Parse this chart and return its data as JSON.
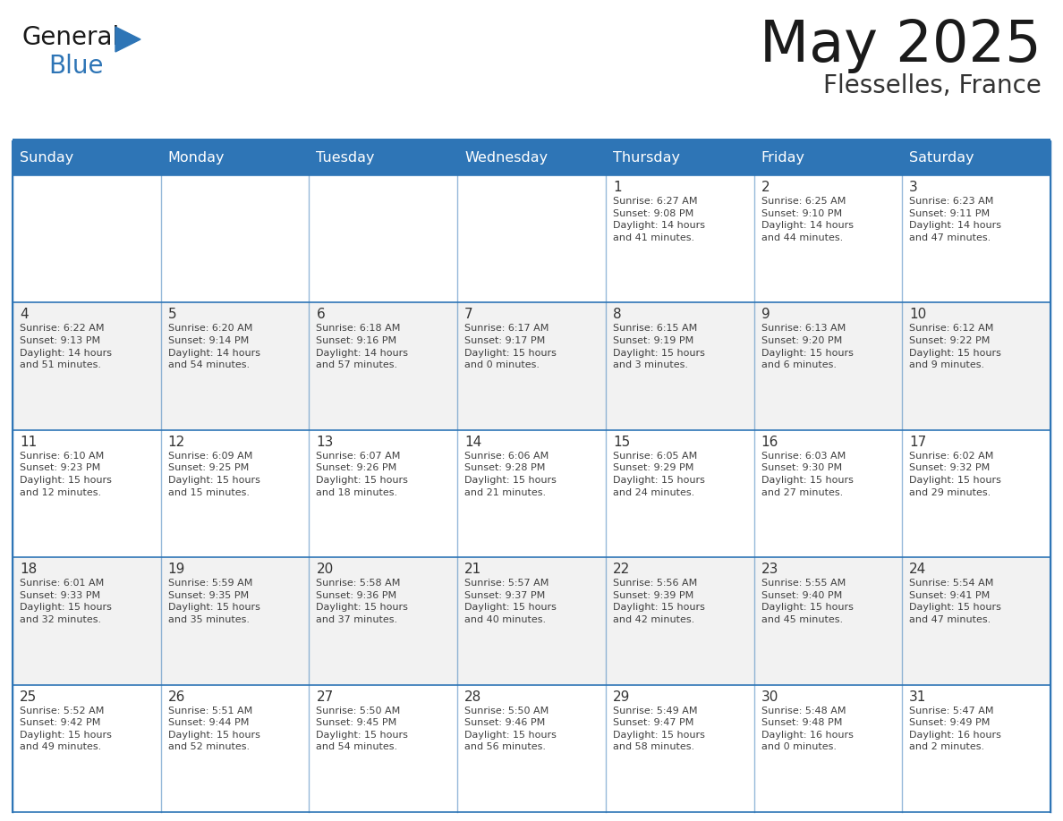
{
  "title": "May 2025",
  "subtitle": "Flesselles, France",
  "header_bg": "#2E75B6",
  "header_text_color": "#FFFFFF",
  "cell_bg_odd": "#F2F2F2",
  "cell_bg_even": "#FFFFFF",
  "day_names": [
    "Sunday",
    "Monday",
    "Tuesday",
    "Wednesday",
    "Thursday",
    "Friday",
    "Saturday"
  ],
  "grid_color": "#2E75B6",
  "number_color": "#333333",
  "text_color": "#404040",
  "title_color": "#1a1a1a",
  "subtitle_color": "#333333",
  "weeks": [
    [
      {
        "day": 0,
        "text": ""
      },
      {
        "day": 0,
        "text": ""
      },
      {
        "day": 0,
        "text": ""
      },
      {
        "day": 0,
        "text": ""
      },
      {
        "day": 1,
        "text": "Sunrise: 6:27 AM\nSunset: 9:08 PM\nDaylight: 14 hours\nand 41 minutes."
      },
      {
        "day": 2,
        "text": "Sunrise: 6:25 AM\nSunset: 9:10 PM\nDaylight: 14 hours\nand 44 minutes."
      },
      {
        "day": 3,
        "text": "Sunrise: 6:23 AM\nSunset: 9:11 PM\nDaylight: 14 hours\nand 47 minutes."
      }
    ],
    [
      {
        "day": 4,
        "text": "Sunrise: 6:22 AM\nSunset: 9:13 PM\nDaylight: 14 hours\nand 51 minutes."
      },
      {
        "day": 5,
        "text": "Sunrise: 6:20 AM\nSunset: 9:14 PM\nDaylight: 14 hours\nand 54 minutes."
      },
      {
        "day": 6,
        "text": "Sunrise: 6:18 AM\nSunset: 9:16 PM\nDaylight: 14 hours\nand 57 minutes."
      },
      {
        "day": 7,
        "text": "Sunrise: 6:17 AM\nSunset: 9:17 PM\nDaylight: 15 hours\nand 0 minutes."
      },
      {
        "day": 8,
        "text": "Sunrise: 6:15 AM\nSunset: 9:19 PM\nDaylight: 15 hours\nand 3 minutes."
      },
      {
        "day": 9,
        "text": "Sunrise: 6:13 AM\nSunset: 9:20 PM\nDaylight: 15 hours\nand 6 minutes."
      },
      {
        "day": 10,
        "text": "Sunrise: 6:12 AM\nSunset: 9:22 PM\nDaylight: 15 hours\nand 9 minutes."
      }
    ],
    [
      {
        "day": 11,
        "text": "Sunrise: 6:10 AM\nSunset: 9:23 PM\nDaylight: 15 hours\nand 12 minutes."
      },
      {
        "day": 12,
        "text": "Sunrise: 6:09 AM\nSunset: 9:25 PM\nDaylight: 15 hours\nand 15 minutes."
      },
      {
        "day": 13,
        "text": "Sunrise: 6:07 AM\nSunset: 9:26 PM\nDaylight: 15 hours\nand 18 minutes."
      },
      {
        "day": 14,
        "text": "Sunrise: 6:06 AM\nSunset: 9:28 PM\nDaylight: 15 hours\nand 21 minutes."
      },
      {
        "day": 15,
        "text": "Sunrise: 6:05 AM\nSunset: 9:29 PM\nDaylight: 15 hours\nand 24 minutes."
      },
      {
        "day": 16,
        "text": "Sunrise: 6:03 AM\nSunset: 9:30 PM\nDaylight: 15 hours\nand 27 minutes."
      },
      {
        "day": 17,
        "text": "Sunrise: 6:02 AM\nSunset: 9:32 PM\nDaylight: 15 hours\nand 29 minutes."
      }
    ],
    [
      {
        "day": 18,
        "text": "Sunrise: 6:01 AM\nSunset: 9:33 PM\nDaylight: 15 hours\nand 32 minutes."
      },
      {
        "day": 19,
        "text": "Sunrise: 5:59 AM\nSunset: 9:35 PM\nDaylight: 15 hours\nand 35 minutes."
      },
      {
        "day": 20,
        "text": "Sunrise: 5:58 AM\nSunset: 9:36 PM\nDaylight: 15 hours\nand 37 minutes."
      },
      {
        "day": 21,
        "text": "Sunrise: 5:57 AM\nSunset: 9:37 PM\nDaylight: 15 hours\nand 40 minutes."
      },
      {
        "day": 22,
        "text": "Sunrise: 5:56 AM\nSunset: 9:39 PM\nDaylight: 15 hours\nand 42 minutes."
      },
      {
        "day": 23,
        "text": "Sunrise: 5:55 AM\nSunset: 9:40 PM\nDaylight: 15 hours\nand 45 minutes."
      },
      {
        "day": 24,
        "text": "Sunrise: 5:54 AM\nSunset: 9:41 PM\nDaylight: 15 hours\nand 47 minutes."
      }
    ],
    [
      {
        "day": 25,
        "text": "Sunrise: 5:52 AM\nSunset: 9:42 PM\nDaylight: 15 hours\nand 49 minutes."
      },
      {
        "day": 26,
        "text": "Sunrise: 5:51 AM\nSunset: 9:44 PM\nDaylight: 15 hours\nand 52 minutes."
      },
      {
        "day": 27,
        "text": "Sunrise: 5:50 AM\nSunset: 9:45 PM\nDaylight: 15 hours\nand 54 minutes."
      },
      {
        "day": 28,
        "text": "Sunrise: 5:50 AM\nSunset: 9:46 PM\nDaylight: 15 hours\nand 56 minutes."
      },
      {
        "day": 29,
        "text": "Sunrise: 5:49 AM\nSunset: 9:47 PM\nDaylight: 15 hours\nand 58 minutes."
      },
      {
        "day": 30,
        "text": "Sunrise: 5:48 AM\nSunset: 9:48 PM\nDaylight: 16 hours\nand 0 minutes."
      },
      {
        "day": 31,
        "text": "Sunrise: 5:47 AM\nSunset: 9:49 PM\nDaylight: 16 hours\nand 2 minutes."
      }
    ]
  ]
}
